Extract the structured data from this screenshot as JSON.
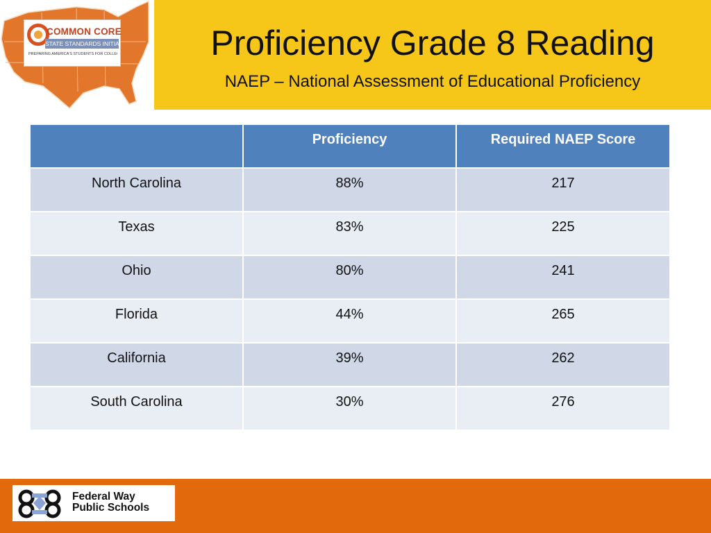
{
  "logo": {
    "title": "COMMON CORE",
    "subtitle": "STATE STANDARDS INITIATIVE",
    "tagline": "PREPARING AMERICA'S STUDENTS FOR COLLEGE & CAREER",
    "icon": "common-core-logo"
  },
  "header": {
    "title": "Proficiency Grade 8 Reading",
    "subtitle": "NAEP – National Assessment of Educational Proficiency"
  },
  "table": {
    "columns": [
      "",
      "Proficiency",
      "Required NAEP Score"
    ],
    "rows": [
      [
        "North Carolina",
        "88%",
        "217"
      ],
      [
        "Texas",
        "83%",
        "225"
      ],
      [
        "Ohio",
        "80%",
        "241"
      ],
      [
        "Florida",
        "44%",
        "265"
      ],
      [
        "California",
        "39%",
        "262"
      ],
      [
        "South Carolina",
        "30%",
        "276"
      ]
    ]
  },
  "footer": {
    "logo_line1": "Federal Way",
    "logo_line2": "Public Schools",
    "icon": "federal-way-logo"
  },
  "colors": {
    "header_band": "#f6c619",
    "table_header": "#4f81bd",
    "row_odd": "#d0d8e8",
    "row_even": "#e9edf4",
    "footer_band": "#e2690c"
  }
}
